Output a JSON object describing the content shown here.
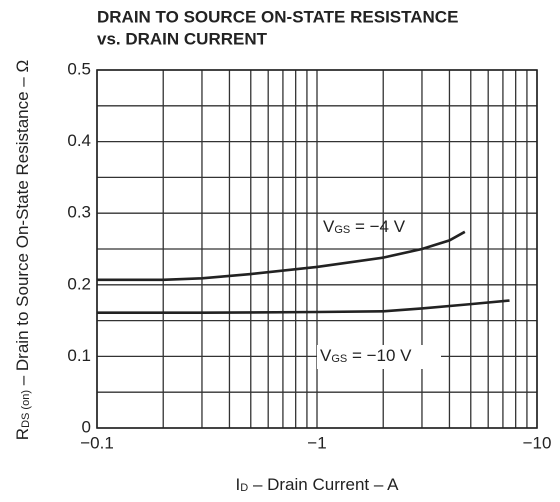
{
  "chart_data": {
    "type": "line",
    "title": [
      "DRAIN TO SOURCE ON-STATE RESISTANCE",
      "vs. DRAIN CURRENT"
    ],
    "xlabel": [
      "I",
      "D",
      " – Drain Current – A"
    ],
    "ylabel": [
      "R",
      "DS (on)",
      " – Drain to Source On-State Resistance – Ω"
    ],
    "xscale": "log",
    "xlim": [
      0.1,
      10
    ],
    "xticks": [
      {
        "value": 0.1,
        "label": "−0.1"
      },
      {
        "value": 1,
        "label": "−1"
      },
      {
        "value": 10,
        "label": "−10"
      }
    ],
    "xminor": [
      0.2,
      0.3,
      0.4,
      0.5,
      0.6,
      0.7,
      0.8,
      0.9,
      2,
      3,
      4,
      5,
      6,
      7,
      8,
      9
    ],
    "ylim": [
      0,
      0.5
    ],
    "yticks": [
      0,
      0.1,
      0.2,
      0.3,
      0.4,
      0.5
    ],
    "yminor": [
      0.05,
      0.15,
      0.25,
      0.35,
      0.45
    ],
    "grid": true,
    "color": "#222222",
    "series": [
      {
        "name": [
          "V",
          "GS",
          " = −4 V"
        ],
        "color": "#222222",
        "x": [
          0.1,
          0.2,
          0.3,
          0.5,
          1,
          2,
          3,
          4,
          4.7
        ],
        "values": [
          0.207,
          0.207,
          0.209,
          0.215,
          0.225,
          0.238,
          0.25,
          0.262,
          0.274
        ]
      },
      {
        "name": [
          "V",
          "GS",
          " = −10 V"
        ],
        "color": "#222222",
        "x": [
          0.1,
          0.3,
          1,
          2,
          3,
          5,
          7.5
        ],
        "values": [
          0.161,
          0.161,
          0.162,
          0.163,
          0.167,
          0.173,
          0.178
        ]
      }
    ]
  }
}
